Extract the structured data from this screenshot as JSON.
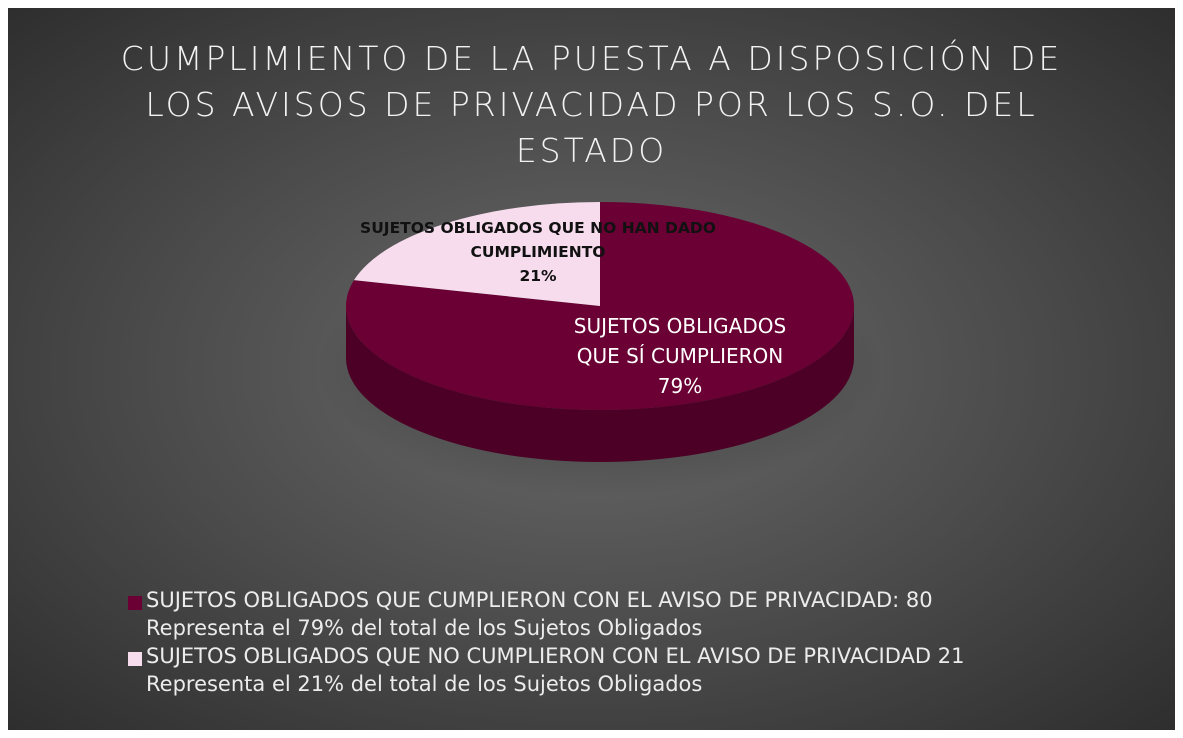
{
  "chart_data": {
    "type": "pie",
    "title": "CUMPLIMIENTO DE LA PUESTA A DISPOSICIÓN DE LOS AVISOS DE PRIVACIDAD POR LOS S.O. DEL ESTADO",
    "categories": [
      "SUJETOS OBLIGADOS QUE SÍ CUMPLIERON",
      "SUJETOS OBLIGADOS QUE NO HAN DADO CUMPLIMIENTO"
    ],
    "values": [
      79,
      21
    ],
    "value_labels": [
      "79%",
      "21%"
    ],
    "colors": [
      "#6a0033",
      "#f6dcec"
    ],
    "legend": [
      "SUJETOS OBLIGADOS QUE CUMPLIERON CON EL AVISO DE PRIVACIDAD: 80 Representa el 79% del total de los Sujetos Obligados",
      "SUJETOS OBLIGADOS QUE NO CUMPLIERON CON EL AVISO DE PRIVACIDAD 21 Representa el 21% del total de los Sujetos Obligados"
    ],
    "legend_position": "bottom"
  }
}
